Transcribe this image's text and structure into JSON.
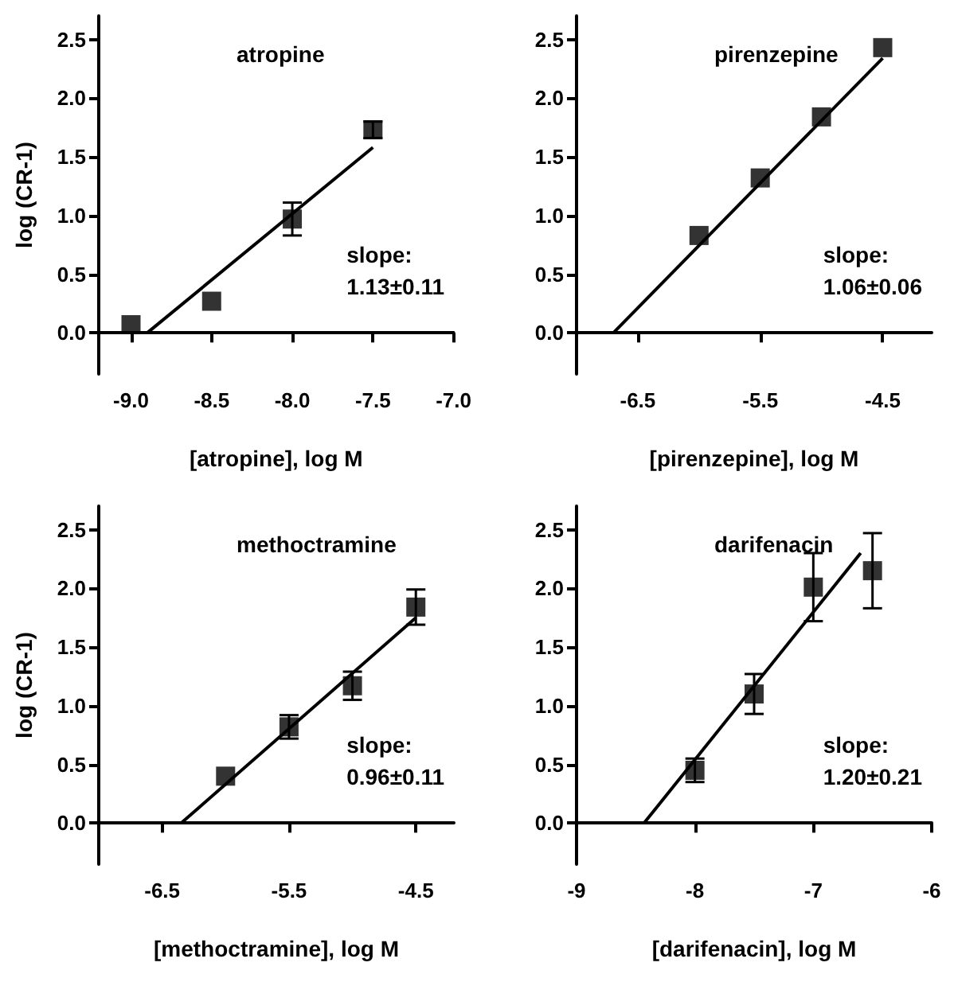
{
  "chart_data": [
    {
      "type": "scatter",
      "title": "atropine",
      "xlabel": "[atropine], log M",
      "ylabel": "log (CR-1)",
      "annotations": [
        "slope:\n1.13±0.11"
      ],
      "xlim": [
        -9.2,
        -7.0
      ],
      "xticks": [
        {
          "value": -9,
          "label": "-9.0"
        },
        -8.5,
        {
          "value": -8,
          "label": "-8.0"
        },
        -7.5,
        {
          "value": -7,
          "label": "-7.0"
        }
      ],
      "ylim": [
        -0.35,
        2.7
      ],
      "yticks": [
        {
          "value": 0,
          "label": "0.0"
        },
        0.5,
        {
          "value": 1,
          "label": "1.0"
        },
        1.5,
        {
          "value": 2,
          "label": "2.0"
        },
        2.5
      ],
      "series": [
        {
          "color": "#000000",
          "marker": "square",
          "x": [
            -9.0,
            -8.5,
            -8.0,
            -7.5
          ],
          "values": [
            0.07,
            0.27,
            0.97,
            1.73
          ],
          "errors": [
            null,
            null,
            0.14,
            0.07
          ]
        },
        {
          "type": "line",
          "color": "#000000",
          "marker": "none",
          "x": [
            -8.9,
            -7.5
          ],
          "values": [
            0,
            1.58
          ]
        }
      ]
    },
    {
      "type": "scatter",
      "title": "pirenzepine",
      "xlabel": "[pirenzepine], log M",
      "annotations": [
        "slope:\n1.06±0.06"
      ],
      "xlim": [
        -7.0,
        -4.1
      ],
      "xticks": [
        -6.5,
        -5.5,
        -4.5
      ],
      "ylim": [
        -0.35,
        2.7
      ],
      "yticks": [
        {
          "value": 0,
          "label": "0.0"
        },
        0.5,
        {
          "value": 1,
          "label": "1.0"
        },
        1.5,
        {
          "value": 2,
          "label": "2.0"
        },
        2.5
      ],
      "series": [
        {
          "color": "#000000",
          "marker": "square",
          "x": [
            -6.0,
            -5.5,
            -5.0,
            -4.5
          ],
          "values": [
            0.83,
            1.32,
            1.84,
            2.43
          ]
        },
        {
          "type": "line",
          "color": "#000000",
          "marker": "none",
          "x": [
            -6.7,
            -4.5
          ],
          "values": [
            0,
            2.34
          ]
        }
      ]
    },
    {
      "type": "scatter",
      "title": "methoctramine",
      "xlabel": "[methoctramine], log M",
      "ylabel": "log (CR-1)",
      "annotations": [
        "slope:\n0.96±0.11"
      ],
      "xlim": [
        -7.0,
        -4.2
      ],
      "xticks": [
        -6.5,
        -5.5,
        -4.5
      ],
      "ylim": [
        -0.35,
        2.7
      ],
      "yticks": [
        {
          "value": 0,
          "label": "0.0"
        },
        0.5,
        {
          "value": 1,
          "label": "1.0"
        },
        1.5,
        {
          "value": 2,
          "label": "2.0"
        },
        2.5
      ],
      "series": [
        {
          "color": "#000000",
          "marker": "square",
          "x": [
            -6.0,
            -5.5,
            -5.0,
            -4.5
          ],
          "values": [
            0.4,
            0.82,
            1.17,
            1.84
          ],
          "errors": [
            null,
            0.1,
            0.12,
            0.15
          ]
        },
        {
          "type": "line",
          "color": "#000000",
          "marker": "none",
          "x": [
            -6.35,
            -4.5
          ],
          "values": [
            0,
            1.75
          ]
        }
      ]
    },
    {
      "type": "scatter",
      "title": "darifenacin",
      "xlabel": "[darifenacin], log M",
      "annotations": [
        "slope:\n1.20±0.21"
      ],
      "xlim": [
        -9,
        -6
      ],
      "xticks": [
        -9,
        -8,
        -7,
        -6
      ],
      "ylim": [
        -0.35,
        2.7
      ],
      "yticks": [
        {
          "value": 0,
          "label": "0.0"
        },
        0.5,
        {
          "value": 1,
          "label": "1.0"
        },
        1.5,
        {
          "value": 2,
          "label": "2.0"
        },
        2.5
      ],
      "series": [
        {
          "color": "#000000",
          "marker": "square",
          "x": [
            -8.0,
            -7.5,
            -7.0,
            -6.5
          ],
          "values": [
            0.45,
            1.1,
            2.01,
            2.15
          ],
          "errors": [
            0.1,
            0.17,
            0.29,
            0.32
          ]
        },
        {
          "type": "line",
          "color": "#000000",
          "marker": "none",
          "x": [
            -8.43,
            -6.6
          ],
          "values": [
            0,
            2.3
          ]
        }
      ]
    }
  ]
}
